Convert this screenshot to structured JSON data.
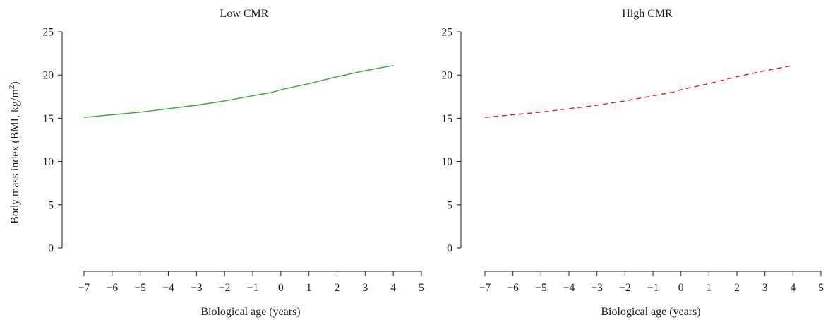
{
  "y_axis_label": "Body mass index (BMI, kg/m",
  "y_axis_label_sup": "2",
  "y_axis_label_end": ")",
  "chart_data": [
    {
      "type": "line",
      "title": "Low CMR",
      "xlabel": "Biological age (years)",
      "ylabel": "Body mass index (BMI, kg/m2)",
      "xlim": [
        -7,
        5
      ],
      "ylim": [
        0,
        25
      ],
      "xticks": [
        -7,
        -6,
        -5,
        -4,
        -3,
        -2,
        -1,
        0,
        1,
        2,
        3,
        4,
        5
      ],
      "xtick_labels": [
        "−7",
        "−6",
        "−5",
        "−4",
        "−3",
        "−2",
        "−1",
        "0",
        "1",
        "2",
        "3",
        "4",
        "5"
      ],
      "yticks": [
        0,
        5,
        10,
        15,
        20,
        25
      ],
      "ytick_labels": [
        "0",
        "5",
        "10",
        "15",
        "20",
        "25"
      ],
      "grid": false,
      "series": [
        {
          "color": "#3aaa35",
          "style": "solid",
          "x": [
            -7,
            -6,
            -5,
            -4,
            -3,
            -2,
            -1,
            -0.3,
            0,
            1,
            2,
            3,
            4
          ],
          "y": [
            15.1,
            15.4,
            15.7,
            16.1,
            16.5,
            17.0,
            17.6,
            18.0,
            18.3,
            19.0,
            19.8,
            20.5,
            21.1
          ]
        }
      ]
    },
    {
      "type": "line",
      "title": "High CMR",
      "xlabel": "Biological age (years)",
      "ylabel": "",
      "xlim": [
        -7,
        5
      ],
      "ylim": [
        0,
        25
      ],
      "xticks": [
        -7,
        -6,
        -5,
        -4,
        -3,
        -2,
        -1,
        0,
        1,
        2,
        3,
        4,
        5
      ],
      "xtick_labels": [
        "−7",
        "−6",
        "−5",
        "−4",
        "−3",
        "−2",
        "−1",
        "0",
        "1",
        "2",
        "3",
        "4",
        "5"
      ],
      "yticks": [
        0,
        5,
        10,
        15,
        20,
        25
      ],
      "ytick_labels": [
        "0",
        "5",
        "10",
        "15",
        "20",
        "25"
      ],
      "grid": false,
      "series": [
        {
          "color": "#e3201b",
          "style": "dashed",
          "x": [
            -7,
            -6,
            -5,
            -4,
            -3,
            -2,
            -1,
            -0.3,
            0,
            1,
            2,
            3,
            4
          ],
          "y": [
            15.1,
            15.4,
            15.7,
            16.1,
            16.5,
            17.0,
            17.6,
            18.0,
            18.3,
            19.0,
            19.8,
            20.5,
            21.1
          ]
        }
      ]
    }
  ]
}
